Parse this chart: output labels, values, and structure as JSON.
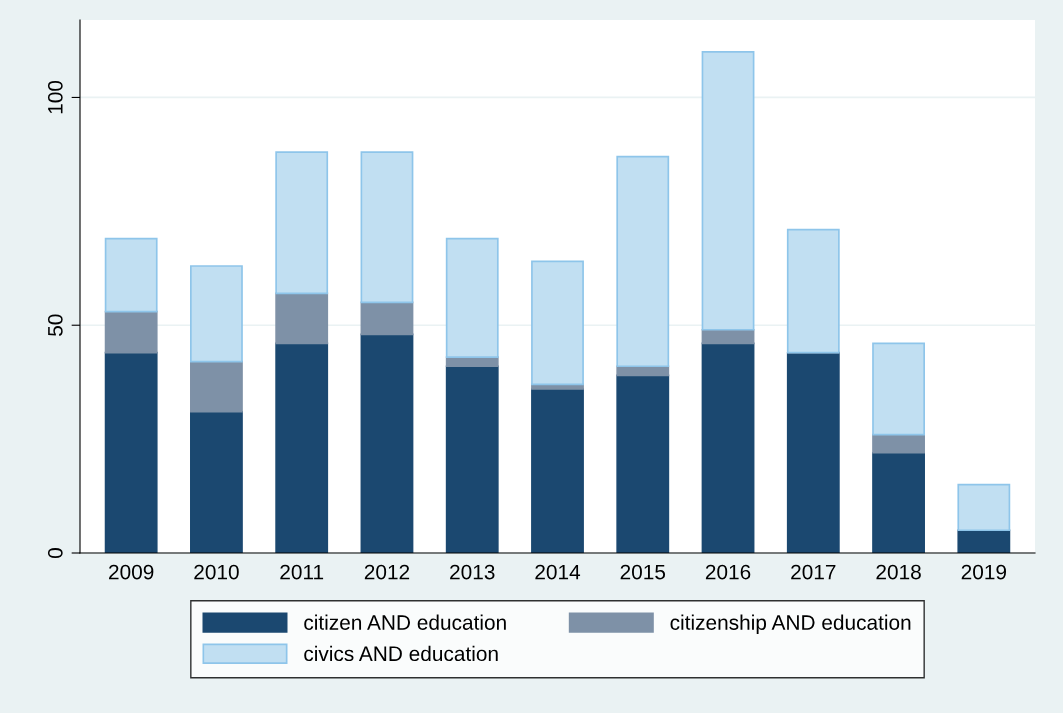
{
  "chart_data": {
    "type": "bar",
    "stacked": true,
    "categories": [
      "2009",
      "2010",
      "2011",
      "2012",
      "2013",
      "2014",
      "2015",
      "2016",
      "2017",
      "2018",
      "2019"
    ],
    "series": [
      {
        "name": "citizen AND education",
        "color": "#1b4870",
        "values": [
          44,
          31,
          46,
          48,
          41,
          36,
          39,
          46,
          44,
          22,
          5
        ]
      },
      {
        "name": "citizenship AND education",
        "color": "#7e91a7",
        "values": [
          9,
          11,
          11,
          7,
          2,
          1,
          2,
          3,
          0,
          4,
          0
        ]
      },
      {
        "name": "civics AND education",
        "color": "#c1dff2",
        "values": [
          16,
          21,
          31,
          33,
          26,
          27,
          46,
          61,
          27,
          20,
          10
        ]
      }
    ],
    "ylim": [
      0,
      117
    ],
    "yticks": [
      0,
      50,
      100
    ],
    "grid": "y",
    "legend": "bottom"
  }
}
